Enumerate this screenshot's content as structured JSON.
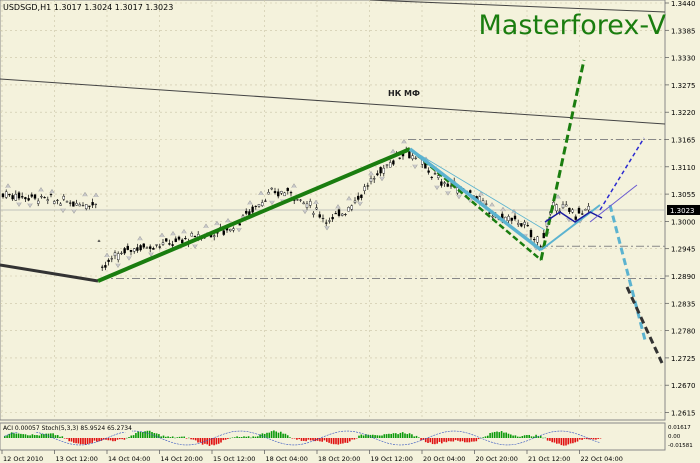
{
  "symbol_info": "USDSGD,H1  1.3017 1.3024 1.3017 1.3023",
  "brand": "Masterforex-V",
  "annotation_label": "НК МФ",
  "indicator_info": "ACI 0.00057 Stoch(5,3,3) 85.9524 65.2734",
  "current_price_label": "1.3023",
  "price_axis": [
    "1.3440",
    "1.3385",
    "1.3330",
    "1.3275",
    "1.3220",
    "1.3165",
    "1.3110",
    "1.3055",
    "1.3000",
    "1.2945",
    "1.2890",
    "1.2835",
    "1.2780",
    "1.2725",
    "1.2670",
    "1.2615"
  ],
  "indicator_axis": [
    "0.01617",
    "0.00",
    "-0.01581"
  ],
  "time_axis": [
    "12 Oct 2010",
    "13 Oct 12:00",
    "14 Oct 04:00",
    "14 Oct 20:00",
    "15 Oct 12:00",
    "18 Oct 04:00",
    "18 Oct 20:00",
    "19 Oct 12:00",
    "20 Oct 04:00",
    "20 Oct 20:00",
    "21 Oct 12:00",
    "22 Oct 04:00"
  ],
  "colors": {
    "background": "#f4f2dc",
    "grid": "#c9c4a6",
    "candles": "#000000",
    "trend_green": "#1a7d0f",
    "trend_blue": "#5bb3d0",
    "projection_black": "#333333",
    "level_gray": "#888888",
    "indicator_green": "#0a9a0a",
    "indicator_red": "#e01010",
    "stoch_blue": "#3050c0"
  }
}
